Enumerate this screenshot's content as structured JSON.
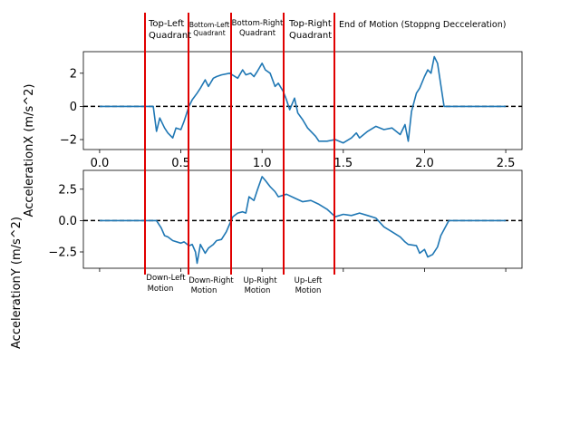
{
  "chart_data": [
    {
      "type": "line",
      "ylabel": "AccelerationX (m/s^2)",
      "xlim": [
        -0.1,
        2.6
      ],
      "ylim": [
        -2.6,
        3.3
      ],
      "xticks": [
        0.0,
        0.5,
        1.0,
        1.5,
        2.0,
        2.5
      ],
      "xtick_labels": [
        "0.0",
        "0.5",
        "1.0",
        "1.5",
        "2.0",
        "2.5"
      ],
      "yticks": [
        -2,
        0,
        2
      ],
      "ytick_labels": [
        "−2",
        "0",
        "2"
      ],
      "series": [
        {
          "color": "#1f77b4",
          "x": [
            0.0,
            0.1,
            0.2,
            0.3,
            0.33,
            0.35,
            0.37,
            0.4,
            0.42,
            0.45,
            0.47,
            0.5,
            0.52,
            0.55,
            0.57,
            0.6,
            0.62,
            0.65,
            0.67,
            0.7,
            0.72,
            0.75,
            0.8,
            0.85,
            0.88,
            0.9,
            0.93,
            0.95,
            0.97,
            1.0,
            1.02,
            1.05,
            1.08,
            1.1,
            1.13,
            1.15,
            1.17,
            1.2,
            1.22,
            1.25,
            1.28,
            1.3,
            1.33,
            1.35,
            1.4,
            1.45,
            1.5,
            1.55,
            1.58,
            1.6,
            1.65,
            1.7,
            1.75,
            1.8,
            1.85,
            1.88,
            1.9,
            1.92,
            1.95,
            1.97,
            2.0,
            2.02,
            2.04,
            2.06,
            2.08,
            2.1,
            2.12,
            2.15,
            2.2,
            2.3,
            2.5
          ],
          "values": [
            0.0,
            0.0,
            0.0,
            0.0,
            0.0,
            -1.5,
            -0.7,
            -1.3,
            -1.6,
            -1.9,
            -1.3,
            -1.4,
            -0.9,
            0.0,
            0.4,
            0.8,
            1.1,
            1.6,
            1.2,
            1.7,
            1.8,
            1.9,
            2.0,
            1.7,
            2.2,
            1.9,
            2.0,
            1.8,
            2.1,
            2.6,
            2.2,
            2.0,
            1.2,
            1.4,
            0.9,
            0.4,
            -0.2,
            0.5,
            -0.4,
            -0.8,
            -1.3,
            -1.5,
            -1.8,
            -2.1,
            -2.1,
            -2.0,
            -2.2,
            -1.9,
            -1.6,
            -1.9,
            -1.5,
            -1.2,
            -1.4,
            -1.3,
            -1.7,
            -1.1,
            -2.1,
            -0.3,
            0.8,
            1.1,
            1.8,
            2.2,
            2.0,
            3.0,
            2.6,
            1.3,
            0.0,
            0.0,
            0.0,
            0.0,
            0.0
          ]
        }
      ]
    },
    {
      "type": "line",
      "ylabel": "AccelerationY (m/s^2)",
      "xlim": [
        -0.1,
        2.6
      ],
      "ylim": [
        -3.8,
        4.0
      ],
      "yticks": [
        -2.5,
        0.0,
        2.5
      ],
      "ytick_labels": [
        "−2.5",
        "0.0",
        "2.5"
      ],
      "series": [
        {
          "color": "#1f77b4",
          "x": [
            0.0,
            0.1,
            0.2,
            0.3,
            0.35,
            0.38,
            0.4,
            0.42,
            0.45,
            0.5,
            0.52,
            0.55,
            0.57,
            0.59,
            0.6,
            0.62,
            0.65,
            0.67,
            0.7,
            0.72,
            0.75,
            0.78,
            0.8,
            0.82,
            0.85,
            0.88,
            0.9,
            0.92,
            0.95,
            0.97,
            1.0,
            1.02,
            1.05,
            1.08,
            1.1,
            1.15,
            1.2,
            1.25,
            1.3,
            1.35,
            1.4,
            1.45,
            1.5,
            1.55,
            1.6,
            1.65,
            1.7,
            1.75,
            1.8,
            1.85,
            1.88,
            1.9,
            1.95,
            1.97,
            2.0,
            2.02,
            2.05,
            2.08,
            2.1,
            2.15,
            2.2,
            2.3,
            2.5
          ],
          "values": [
            0.0,
            0.0,
            0.0,
            0.0,
            0.0,
            -0.6,
            -1.2,
            -1.3,
            -1.6,
            -1.8,
            -1.7,
            -2.0,
            -1.9,
            -2.5,
            -3.4,
            -1.9,
            -2.6,
            -2.2,
            -1.9,
            -1.6,
            -1.5,
            -0.9,
            -0.3,
            0.3,
            0.6,
            0.7,
            0.6,
            1.9,
            1.6,
            2.4,
            3.5,
            3.2,
            2.7,
            2.3,
            1.9,
            2.1,
            1.8,
            1.5,
            1.6,
            1.3,
            0.9,
            0.3,
            0.5,
            0.4,
            0.6,
            0.4,
            0.2,
            -0.5,
            -0.9,
            -1.3,
            -1.7,
            -1.9,
            -2.0,
            -2.6,
            -2.3,
            -2.9,
            -2.7,
            -2.1,
            -1.2,
            0.0,
            0.0,
            0.0,
            0.0
          ]
        }
      ]
    }
  ],
  "annotations": {
    "top": [
      {
        "line1": "Top-Left",
        "line2": "Quadrant"
      },
      {
        "line1": "Bottom-Left",
        "line2": "Quadrant"
      },
      {
        "line1": "Bottom-Right",
        "line2": "Quadrant"
      },
      {
        "line1": "Top-Right",
        "line2": "Quadrant"
      },
      {
        "line1": "End of Motion (Stoppng Decceleration)",
        "line2": ""
      }
    ],
    "bottom": [
      {
        "line1": "Down-Left",
        "line2": "Motion"
      },
      {
        "line1": "Down-Right",
        "line2": "Motion"
      },
      {
        "line1": "Up-Right",
        "line2": "Motion"
      },
      {
        "line1": "Up-Left",
        "line2": "Motion"
      }
    ]
  },
  "colors": {
    "line": "#1f77b4",
    "divider": "#e00000",
    "zero_line": "#000000"
  }
}
